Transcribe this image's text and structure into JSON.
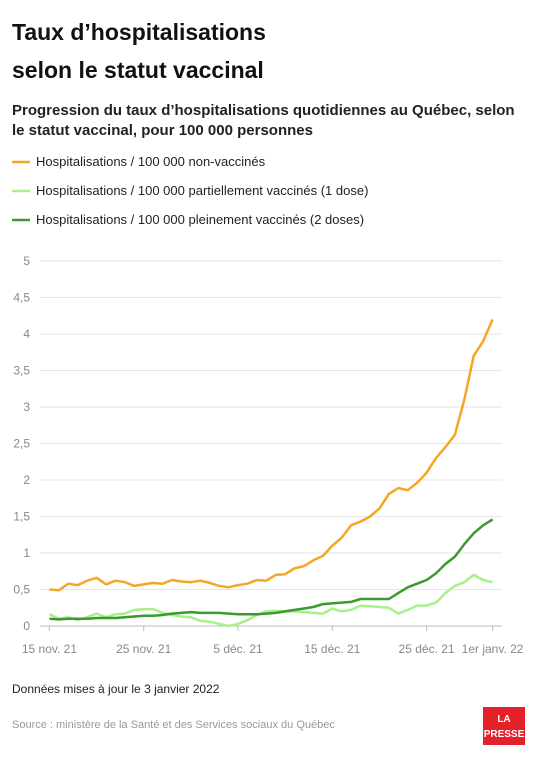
{
  "chart_data": {
    "type": "line",
    "title_lines": [
      "Taux d’hospitalisations",
      "selon le statut vaccinal"
    ],
    "subtitle_lines": [
      "Progression du taux d’hospitalisations quotidiennes au Québec, selon",
      "le statut vaccinal, pour 100 000 personnes"
    ],
    "x": [
      "2021-11-15",
      "2021-11-16",
      "2021-11-17",
      "2021-11-18",
      "2021-11-19",
      "2021-11-20",
      "2021-11-21",
      "2021-11-22",
      "2021-11-23",
      "2021-11-24",
      "2021-11-25",
      "2021-11-26",
      "2021-11-27",
      "2021-11-28",
      "2021-11-29",
      "2021-11-30",
      "2021-12-01",
      "2021-12-02",
      "2021-12-03",
      "2021-12-04",
      "2021-12-05",
      "2021-12-06",
      "2021-12-07",
      "2021-12-08",
      "2021-12-09",
      "2021-12-10",
      "2021-12-11",
      "2021-12-12",
      "2021-12-13",
      "2021-12-14",
      "2021-12-15",
      "2021-12-16",
      "2021-12-17",
      "2021-12-18",
      "2021-12-19",
      "2021-12-20",
      "2021-12-21",
      "2021-12-22",
      "2021-12-23",
      "2021-12-24",
      "2021-12-25",
      "2021-12-26",
      "2021-12-27",
      "2021-12-28",
      "2021-12-29",
      "2021-12-30",
      "2021-12-31",
      "2022-01-01"
    ],
    "series": [
      {
        "name": "Hospitalisations / 100 000 non-vaccinés",
        "color": "#f5a623",
        "values": [
          0.5,
          0.49,
          0.58,
          0.56,
          0.62,
          0.66,
          0.57,
          0.62,
          0.6,
          0.55,
          0.57,
          0.59,
          0.58,
          0.63,
          0.61,
          0.6,
          0.62,
          0.59,
          0.55,
          0.53,
          0.56,
          0.58,
          0.63,
          0.62,
          0.7,
          0.71,
          0.79,
          0.82,
          0.9,
          0.96,
          1.1,
          1.21,
          1.38,
          1.43,
          1.5,
          1.61,
          1.81,
          1.89,
          1.86,
          1.96,
          2.1,
          2.3,
          2.45,
          2.62,
          3.1,
          3.7,
          3.9,
          4.2
        ]
      },
      {
        "name": "Hospitalisations / 100 000 partiellement vaccinés (1 dose)",
        "color": "#a8f08c",
        "values": [
          0.16,
          0.1,
          0.12,
          0.08,
          0.12,
          0.17,
          0.12,
          0.16,
          0.17,
          0.22,
          0.23,
          0.23,
          0.18,
          0.15,
          0.13,
          0.12,
          0.07,
          0.06,
          0.03,
          0.0,
          0.03,
          0.08,
          0.15,
          0.2,
          0.21,
          0.2,
          0.2,
          0.19,
          0.18,
          0.17,
          0.24,
          0.2,
          0.22,
          0.28,
          0.27,
          0.26,
          0.25,
          0.17,
          0.22,
          0.28,
          0.28,
          0.32,
          0.45,
          0.55,
          0.6,
          0.7,
          0.63,
          0.6
        ]
      },
      {
        "name": "Hospitalisations / 100 000 pleinement vaccinés (2 doses)",
        "color": "#3a9a2e",
        "values": [
          0.1,
          0.09,
          0.1,
          0.1,
          0.1,
          0.11,
          0.11,
          0.11,
          0.12,
          0.13,
          0.14,
          0.14,
          0.15,
          0.17,
          0.18,
          0.19,
          0.18,
          0.18,
          0.18,
          0.17,
          0.16,
          0.16,
          0.16,
          0.17,
          0.18,
          0.2,
          0.22,
          0.24,
          0.26,
          0.3,
          0.31,
          0.32,
          0.33,
          0.37,
          0.37,
          0.37,
          0.37,
          0.45,
          0.53,
          0.58,
          0.63,
          0.72,
          0.85,
          0.95,
          1.12,
          1.27,
          1.38,
          1.46
        ]
      }
    ],
    "xlim": [
      "2021-11-14",
      "2022-01-02"
    ],
    "xticks": [
      {
        "value": "2021-11-15",
        "label": "15 nov. 21"
      },
      {
        "value": "2021-11-25",
        "label": "25 nov. 21"
      },
      {
        "value": "2021-12-05",
        "label": "5 déc. 21"
      },
      {
        "value": "2021-12-15",
        "label": "15 déc. 21"
      },
      {
        "value": "2021-12-25",
        "label": "25 déc. 21"
      },
      {
        "value": "2022-01-01",
        "label": "1er janv. 22"
      }
    ],
    "ylim": [
      0,
      5
    ],
    "yticks": [
      0,
      {
        "value": 0.5,
        "label": "0,5"
      },
      1,
      {
        "value": 1.5,
        "label": "1,5"
      },
      2,
      {
        "value": 2.5,
        "label": "2,5"
      },
      3,
      {
        "value": 3.5,
        "label": "3,5"
      },
      4,
      {
        "value": 4.5,
        "label": "4,5"
      },
      5
    ],
    "grid": true,
    "note": "Données mises à jour le 3 janvier 2022",
    "source": "Source : ministère de la Santé et des Services sociaux du Québec",
    "logo_lines": [
      "LA",
      "PRESSE"
    ]
  }
}
